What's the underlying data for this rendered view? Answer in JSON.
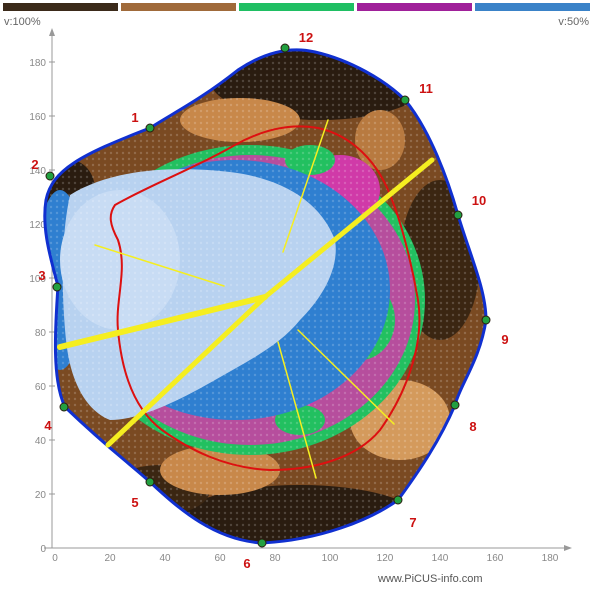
{
  "legend": {
    "colors": [
      "#3b2a1a",
      "#a06a3a",
      "#1fbf63",
      "#a0209a",
      "#3a82c8"
    ]
  },
  "corner_labels": {
    "left": "v:100%",
    "right": "v:50%"
  },
  "axis": {
    "x_ticks": [
      "0",
      "20",
      "40",
      "60",
      "80",
      "100",
      "120",
      "140",
      "160",
      "180"
    ],
    "y_ticks": [
      "0",
      "20",
      "40",
      "60",
      "80",
      "100",
      "120",
      "140",
      "160",
      "180"
    ]
  },
  "sensors": [
    {
      "label": "1"
    },
    {
      "label": "2"
    },
    {
      "label": "3"
    },
    {
      "label": "4"
    },
    {
      "label": "5"
    },
    {
      "label": "6"
    },
    {
      "label": "7"
    },
    {
      "label": "8"
    },
    {
      "label": "9"
    },
    {
      "label": "10"
    },
    {
      "label": "11"
    },
    {
      "label": "12"
    }
  ],
  "footer": "www.PiCUS-info.com",
  "palette": {
    "dark_brown": "#2a1c10",
    "mid_brown": "#8a5a2e",
    "light_brown": "#d49a5c",
    "green": "#22c060",
    "magenta": "#d03aa8",
    "blue": "#2f7fd0",
    "light_blue": "#b8d2f0",
    "outline": "#1030d0",
    "red_line": "#dd1010",
    "yellow": "#f5ee20"
  }
}
